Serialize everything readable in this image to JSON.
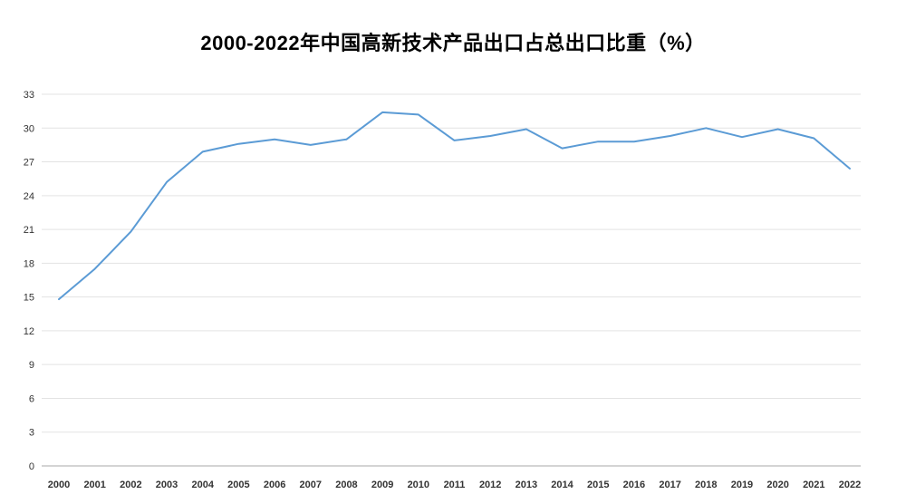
{
  "chart_data": {
    "type": "line",
    "title": "2000-2022年中国高新技术产品出口占总出口比重（%）",
    "categories": [
      "2000",
      "2001",
      "2002",
      "2003",
      "2004",
      "2005",
      "2006",
      "2007",
      "2008",
      "2009",
      "2010",
      "2011",
      "2012",
      "2013",
      "2014",
      "2015",
      "2016",
      "2017",
      "2018",
      "2019",
      "2020",
      "2021",
      "2022"
    ],
    "values": [
      14.8,
      17.5,
      20.8,
      25.2,
      27.9,
      28.6,
      29.0,
      28.5,
      29.0,
      31.4,
      31.2,
      28.9,
      29.3,
      29.9,
      28.2,
      28.8,
      28.8,
      29.3,
      30.0,
      29.2,
      29.9,
      29.1,
      26.4
    ],
    "xlabel": "",
    "ylabel": "",
    "ylim": [
      0,
      33
    ],
    "ytick_step": 3,
    "grid": true,
    "legend": "none",
    "line_color": "#5B9BD5",
    "grid_color": "#e3e3e3",
    "axis_color": "#aaaaaa",
    "tick_text_color": "#333333"
  }
}
